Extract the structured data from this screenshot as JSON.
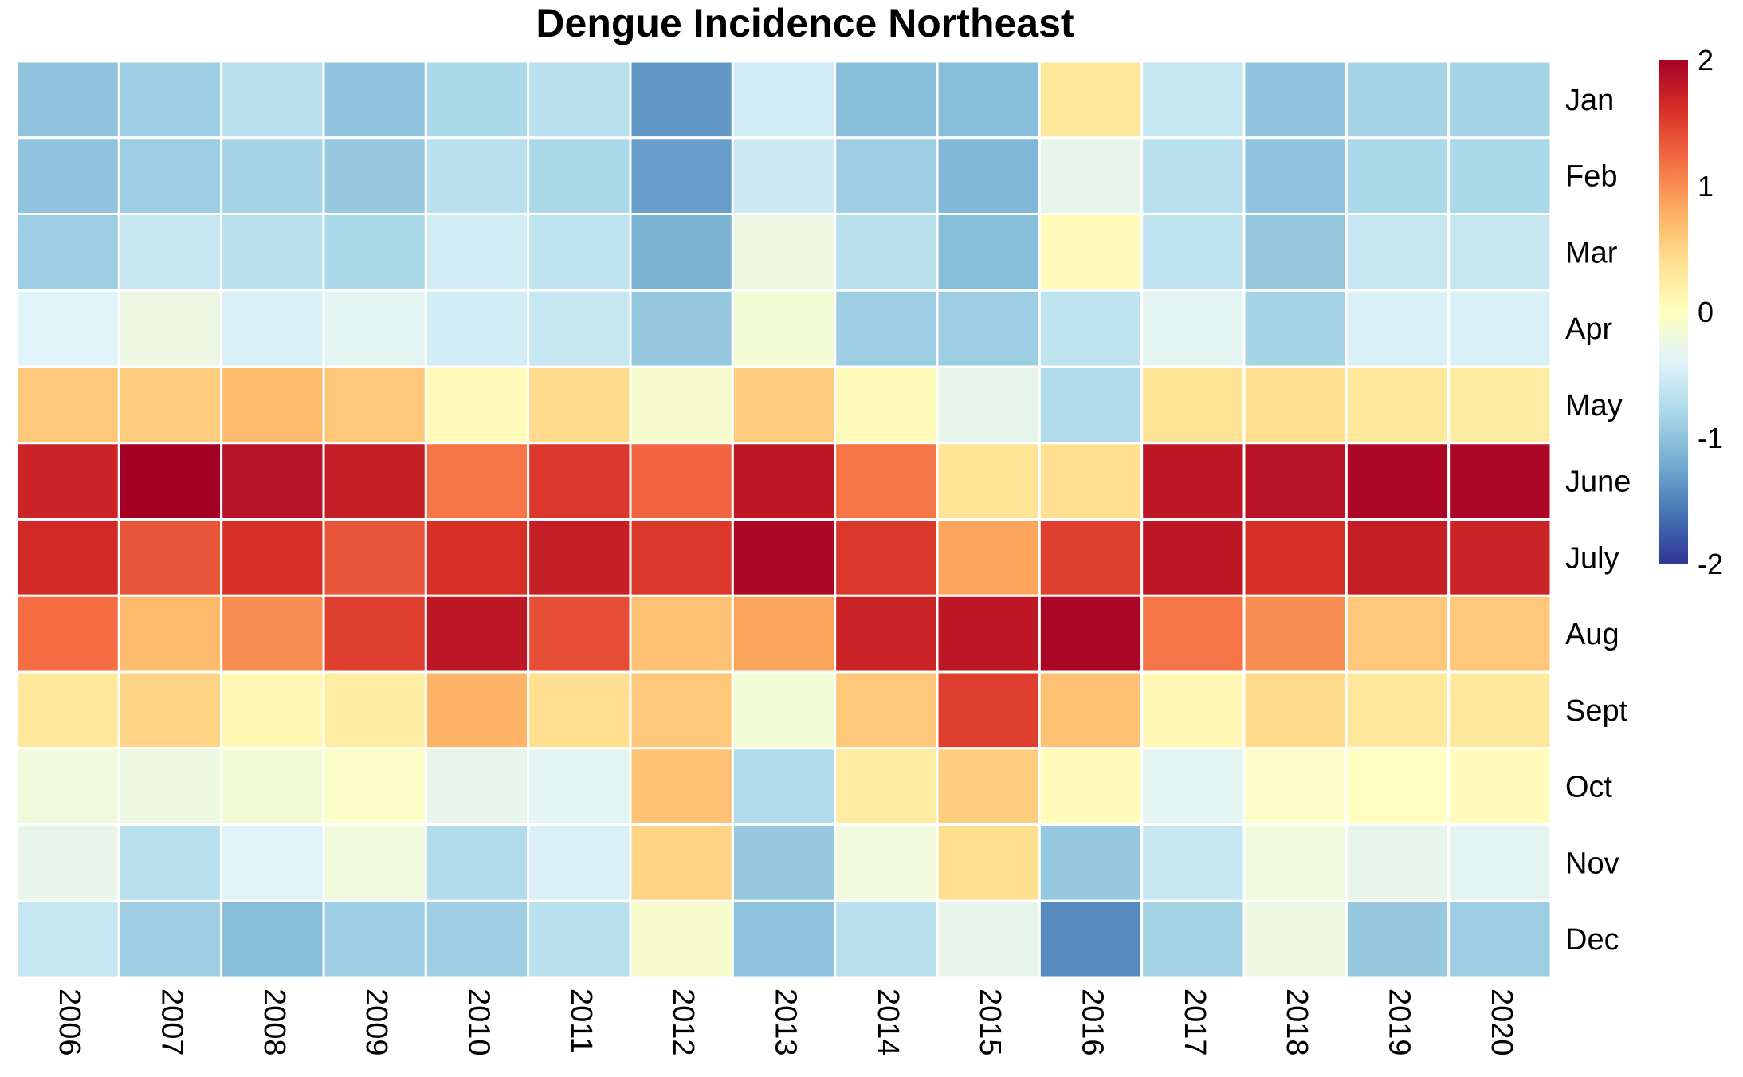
{
  "chart_data": {
    "type": "heatmap",
    "title": "Dengue Incidence Northeast",
    "columns": [
      "2006",
      "2007",
      "2008",
      "2009",
      "2010",
      "2011",
      "2012",
      "2013",
      "2014",
      "2015",
      "2016",
      "2017",
      "2018",
      "2019",
      "2020"
    ],
    "rows": [
      "Jan",
      "Feb",
      "Mar",
      "Apr",
      "May",
      "June",
      "July",
      "Aug",
      "Sept",
      "Oct",
      "Nov",
      "Dec"
    ],
    "values": [
      [
        -1.0,
        -0.9,
        -0.7,
        -1.0,
        -0.8,
        -0.7,
        -1.35,
        -0.5,
        -1.05,
        -1.05,
        0.3,
        -0.6,
        -1.0,
        -0.85,
        -0.85
      ],
      [
        -1.0,
        -0.9,
        -0.85,
        -0.95,
        -0.7,
        -0.8,
        -1.3,
        -0.55,
        -0.9,
        -1.1,
        -0.3,
        -0.7,
        -1.0,
        -0.8,
        -0.8
      ],
      [
        -0.9,
        -0.6,
        -0.7,
        -0.8,
        -0.5,
        -0.65,
        -1.15,
        -0.25,
        -0.7,
        -1.05,
        0.05,
        -0.65,
        -0.95,
        -0.6,
        -0.6
      ],
      [
        -0.4,
        -0.25,
        -0.45,
        -0.35,
        -0.5,
        -0.6,
        -0.95,
        -0.15,
        -0.9,
        -0.9,
        -0.65,
        -0.35,
        -0.85,
        -0.45,
        -0.45
      ],
      [
        0.6,
        0.55,
        0.7,
        0.6,
        0.05,
        0.45,
        -0.1,
        0.55,
        0.05,
        -0.3,
        -0.75,
        0.35,
        0.4,
        0.3,
        0.25
      ],
      [
        1.7,
        2.0,
        1.85,
        1.75,
        1.15,
        1.55,
        1.25,
        1.8,
        1.15,
        0.35,
        0.4,
        1.8,
        1.85,
        1.95,
        1.95
      ],
      [
        1.65,
        1.35,
        1.6,
        1.35,
        1.6,
        1.75,
        1.55,
        1.95,
        1.55,
        0.85,
        1.5,
        1.8,
        1.6,
        1.75,
        1.7
      ],
      [
        1.2,
        0.7,
        1.0,
        1.5,
        1.8,
        1.4,
        0.65,
        0.85,
        1.7,
        1.8,
        1.95,
        1.15,
        1.0,
        0.6,
        0.6
      ],
      [
        0.3,
        0.5,
        0.1,
        0.25,
        0.75,
        0.4,
        0.6,
        -0.15,
        0.6,
        1.5,
        0.65,
        0.1,
        0.45,
        0.3,
        0.3
      ],
      [
        -0.2,
        -0.25,
        -0.15,
        -0.05,
        -0.3,
        -0.35,
        0.65,
        -0.75,
        0.25,
        0.55,
        0.05,
        -0.35,
        -0.05,
        0.0,
        0.05
      ],
      [
        -0.3,
        -0.7,
        -0.4,
        -0.2,
        -0.75,
        -0.45,
        0.5,
        -0.95,
        -0.2,
        0.4,
        -0.95,
        -0.6,
        -0.2,
        -0.3,
        -0.35
      ],
      [
        -0.6,
        -0.9,
        -1.05,
        -0.9,
        -0.9,
        -0.7,
        -0.1,
        -1.0,
        -0.7,
        -0.3,
        -1.45,
        -0.85,
        -0.25,
        -0.95,
        -0.9
      ]
    ],
    "legend": {
      "min": -2,
      "max": 2,
      "ticks": [
        "2",
        "1",
        "0",
        "-1",
        "-2"
      ],
      "placement": "right"
    },
    "colors": [
      "#313695",
      "#4575b4",
      "#74add1",
      "#abd9e9",
      "#e0f3f8",
      "#ffffbf",
      "#fee090",
      "#fdae61",
      "#f46d43",
      "#d73027",
      "#a50026"
    ]
  }
}
